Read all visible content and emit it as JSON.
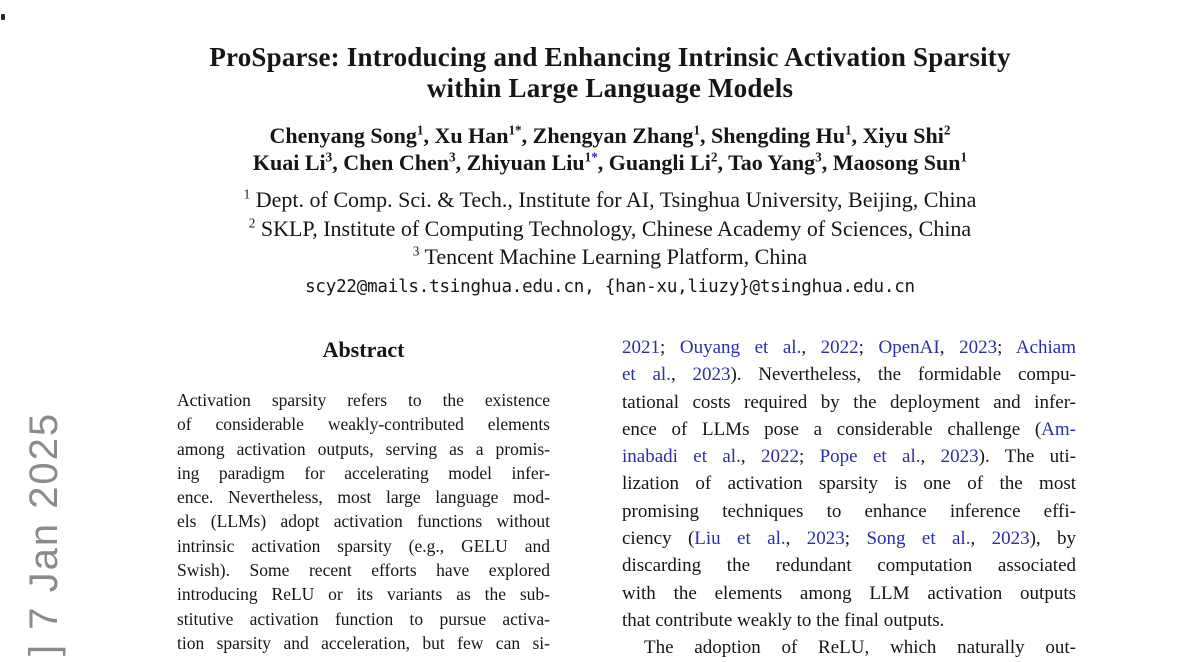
{
  "watermark": "] 7 Jan 2025",
  "colors": {
    "link_blue": "#2a2fa8",
    "watermark_gray": "#8b8b8b"
  },
  "header": {
    "title_lines": [
      "ProSparse: Introducing and Enhancing Intrinsic Activation Sparsity",
      "within Large Language Models"
    ],
    "author_lines": [
      [
        {
          "t": "Chenyang Song"
        },
        {
          "s": "1"
        },
        {
          "t": ", Xu Han"
        },
        {
          "s": "1*"
        },
        {
          "t": ", Zhengyan Zhang"
        },
        {
          "s": "1"
        },
        {
          "t": ", Shengding Hu"
        },
        {
          "s": "1"
        },
        {
          "t": ", Xiyu Shi"
        },
        {
          "s": "2"
        }
      ],
      [
        {
          "t": "Kuai Li"
        },
        {
          "s": "3"
        },
        {
          "t": ", Chen Chen"
        },
        {
          "s": "3"
        },
        {
          "t": ", Zhiyuan Liu"
        },
        {
          "s": "1"
        },
        {
          "s": "*",
          "link": true
        },
        {
          "t": ", Guangli Li"
        },
        {
          "s": "2"
        },
        {
          "t": ", Tao Yang"
        },
        {
          "s": "3"
        },
        {
          "t": ", Maosong Sun"
        },
        {
          "s": "1"
        }
      ]
    ],
    "affiliations": [
      {
        "sup": "1",
        "text": " Dept. of Comp. Sci. & Tech., Institute for AI, Tsinghua University, Beijing, China"
      },
      {
        "sup": "2",
        "text": " SKLP, Institute of Computing Technology, Chinese Academy of Sciences, China"
      },
      {
        "sup": "3",
        "text": " Tencent Machine Learning Platform, China"
      }
    ],
    "email": "scy22@mails.tsinghua.edu.cn, {han-xu,liuzy}@tsinghua.edu.cn"
  },
  "abstract": {
    "heading": "Abstract",
    "lines": [
      "Activation sparsity refers to the existence",
      "of considerable weakly-contributed elements",
      "among activation outputs, serving as a promis-",
      "ing paradigm for accelerating model infer-",
      "ence. Nevertheless, most large language mod-",
      "els (LLMs) adopt activation functions without",
      "intrinsic activation sparsity (e.g., GELU and",
      "Swish). Some recent efforts have explored",
      "introducing ReLU or its variants as the sub-",
      "stitutive activation function to pursue activa-",
      "tion sparsity and acceleration, but few can si-"
    ]
  },
  "intro": {
    "lines": [
      {
        "parts": [
          {
            "t": "2021",
            "link": true
          },
          {
            "t": "; "
          },
          {
            "t": "Ouyang et al.",
            "link": true
          },
          {
            "t": ", "
          },
          {
            "t": "2022",
            "link": true
          },
          {
            "t": "; "
          },
          {
            "t": "OpenAI",
            "link": true
          },
          {
            "t": ", "
          },
          {
            "t": "2023",
            "link": true
          },
          {
            "t": "; "
          },
          {
            "t": "Achiam",
            "link": true
          }
        ]
      },
      {
        "parts": [
          {
            "t": "et al.",
            "link": true
          },
          {
            "t": ", "
          },
          {
            "t": "2023",
            "link": true
          },
          {
            "t": "). Nevertheless, the formidable compu-"
          }
        ]
      },
      {
        "parts": [
          {
            "t": "tational costs required by the deployment and infer-"
          }
        ]
      },
      {
        "parts": [
          {
            "t": "ence of LLMs pose a considerable challenge ("
          },
          {
            "t": "Am-",
            "link": true
          }
        ]
      },
      {
        "parts": [
          {
            "t": "inabadi et al.",
            "link": true
          },
          {
            "t": ", "
          },
          {
            "t": "2022",
            "link": true
          },
          {
            "t": "; "
          },
          {
            "t": "Pope et al.",
            "link": true
          },
          {
            "t": ", "
          },
          {
            "t": "2023",
            "link": true
          },
          {
            "t": "). The uti-"
          }
        ]
      },
      {
        "parts": [
          {
            "t": "lization of activation sparsity is one of the most"
          }
        ]
      },
      {
        "parts": [
          {
            "t": "promising techniques to enhance inference effi-"
          }
        ]
      },
      {
        "parts": [
          {
            "t": "ciency ("
          },
          {
            "t": "Liu et al.",
            "link": true
          },
          {
            "t": ", "
          },
          {
            "t": "2023",
            "link": true
          },
          {
            "t": "; "
          },
          {
            "t": "Song et al.",
            "link": true
          },
          {
            "t": ", "
          },
          {
            "t": "2023",
            "link": true
          },
          {
            "t": "), by"
          }
        ]
      },
      {
        "parts": [
          {
            "t": "discarding the redundant computation associated"
          }
        ]
      },
      {
        "parts": [
          {
            "t": "with the elements among LLM activation outputs"
          }
        ]
      },
      {
        "parts": [
          {
            "t": "that contribute weakly to the final outputs."
          }
        ],
        "para_end": true
      },
      {
        "parts": [
          {
            "t": "The adoption of ReLU, which naturally out-"
          }
        ],
        "indent": true
      }
    ]
  }
}
